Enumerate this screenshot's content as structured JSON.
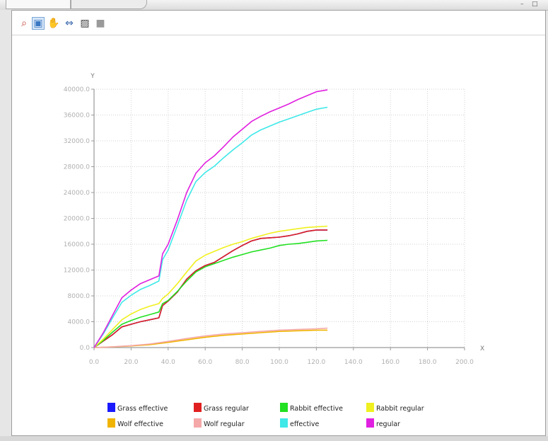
{
  "window": {
    "tabs": [
      {
        "label": ""
      },
      {
        "label": ""
      }
    ],
    "minimize_glyph": "–",
    "maximize_glyph": "□"
  },
  "toolbar": {
    "tools": [
      {
        "name": "zoom-select-icon",
        "glyph": "⌕",
        "color": "#c0392b"
      },
      {
        "name": "zoom-box-icon",
        "glyph": "▣",
        "color": "#3a78c2",
        "active": true
      },
      {
        "name": "pan-icon",
        "glyph": "✋",
        "color": "#2e8b2e"
      },
      {
        "name": "fit-icon",
        "glyph": "⇔",
        "color": "#2f5fa8"
      },
      {
        "name": "export-icon",
        "glyph": "▨",
        "color": "#444444"
      },
      {
        "name": "options-icon",
        "glyph": "■",
        "color": "#9a9a9a"
      }
    ]
  },
  "chart_data": {
    "type": "line",
    "title": "",
    "xlabel": "X",
    "ylabel": "Y",
    "xlim": [
      0,
      200
    ],
    "ylim": [
      0,
      40000
    ],
    "xticks": [
      0,
      20,
      40,
      60,
      80,
      100,
      120,
      140,
      160,
      180,
      200
    ],
    "yticks": [
      0,
      4000,
      8000,
      12000,
      16000,
      20000,
      24000,
      28000,
      32000,
      36000,
      40000
    ],
    "grid": true,
    "legend_position": "bottom",
    "series": [
      {
        "name": "Grass effective",
        "color": "#1a1aff",
        "x": [
          0,
          5,
          10,
          15,
          20,
          25,
          30,
          35,
          37,
          40,
          45,
          50,
          55,
          60,
          65,
          70,
          75,
          80,
          85,
          90,
          95,
          100,
          105,
          110,
          115,
          120,
          126
        ],
        "y": [
          0,
          1000,
          2000,
          3200,
          3600,
          4000,
          4300,
          4600,
          6500,
          7200,
          8600,
          10600,
          11900,
          12700,
          13200,
          14100,
          15000,
          15800,
          16500,
          16900,
          17000,
          17100,
          17300,
          17600,
          18000,
          18200,
          18200
        ]
      },
      {
        "name": "Grass regular",
        "color": "#e02020",
        "x": [
          0,
          5,
          10,
          15,
          20,
          25,
          30,
          35,
          37,
          40,
          45,
          50,
          55,
          60,
          65,
          70,
          75,
          80,
          85,
          90,
          95,
          100,
          105,
          110,
          115,
          120,
          126
        ],
        "y": [
          0,
          1000,
          2000,
          3200,
          3600,
          4000,
          4300,
          4600,
          6500,
          7200,
          8600,
          10600,
          11900,
          12700,
          13200,
          14100,
          15000,
          15800,
          16500,
          16900,
          17000,
          17100,
          17300,
          17600,
          18000,
          18200,
          18200
        ]
      },
      {
        "name": "Rabbit effective",
        "color": "#22e022",
        "x": [
          0,
          5,
          10,
          15,
          20,
          25,
          30,
          35,
          37,
          40,
          45,
          50,
          55,
          60,
          65,
          70,
          75,
          80,
          85,
          90,
          95,
          100,
          105,
          110,
          115,
          120,
          126
        ],
        "y": [
          0,
          1100,
          2400,
          3600,
          4200,
          4700,
          5100,
          5500,
          6800,
          7300,
          8700,
          10300,
          11700,
          12500,
          13000,
          13500,
          14000,
          14400,
          14800,
          15100,
          15400,
          15800,
          16000,
          16100,
          16300,
          16500,
          16600
        ]
      },
      {
        "name": "Rabbit regular",
        "color": "#f0f020",
        "x": [
          0,
          5,
          10,
          15,
          20,
          25,
          30,
          35,
          37,
          40,
          45,
          50,
          55,
          60,
          65,
          70,
          75,
          80,
          85,
          90,
          95,
          100,
          105,
          110,
          115,
          120,
          126
        ],
        "y": [
          0,
          1300,
          2800,
          4300,
          5200,
          5900,
          6400,
          6800,
          7600,
          8300,
          9900,
          11700,
          13400,
          14300,
          14900,
          15500,
          16000,
          16400,
          16900,
          17300,
          17700,
          18000,
          18200,
          18400,
          18600,
          18700,
          18800
        ]
      },
      {
        "name": "Wolf effective",
        "color": "#f0b400",
        "x": [
          0,
          10,
          20,
          30,
          40,
          50,
          60,
          70,
          80,
          90,
          100,
          110,
          120,
          126
        ],
        "y": [
          0,
          100,
          250,
          450,
          800,
          1200,
          1600,
          1900,
          2100,
          2300,
          2500,
          2600,
          2700,
          2700
        ]
      },
      {
        "name": "Wolf regular",
        "color": "#f5a8a8",
        "x": [
          0,
          10,
          20,
          30,
          40,
          50,
          60,
          70,
          80,
          90,
          100,
          110,
          120,
          126
        ],
        "y": [
          0,
          120,
          300,
          550,
          950,
          1400,
          1800,
          2100,
          2300,
          2500,
          2700,
          2800,
          2900,
          3000
        ]
      },
      {
        "name": "effective",
        "color": "#40e8e8",
        "x": [
          0,
          5,
          10,
          15,
          20,
          25,
          30,
          35,
          37,
          40,
          45,
          50,
          55,
          60,
          65,
          70,
          75,
          80,
          85,
          90,
          95,
          100,
          105,
          110,
          115,
          120,
          126
        ],
        "y": [
          0,
          2100,
          4600,
          7000,
          8100,
          9000,
          9600,
          10300,
          13600,
          15100,
          18900,
          22800,
          25700,
          27100,
          28100,
          29400,
          30600,
          31700,
          32900,
          33700,
          34300,
          34900,
          35400,
          35900,
          36400,
          36900,
          37200
        ]
      },
      {
        "name": "regular",
        "color": "#e020e0",
        "x": [
          0,
          5,
          10,
          15,
          20,
          25,
          30,
          35,
          37,
          40,
          45,
          50,
          55,
          60,
          65,
          70,
          75,
          80,
          85,
          90,
          95,
          100,
          105,
          110,
          115,
          120,
          126
        ],
        "y": [
          0,
          2300,
          5000,
          7700,
          8900,
          9900,
          10500,
          11100,
          14500,
          16000,
          19800,
          24000,
          27000,
          28600,
          29700,
          31100,
          32600,
          33800,
          35000,
          35800,
          36500,
          37100,
          37700,
          38400,
          39000,
          39600,
          39900
        ]
      }
    ]
  }
}
